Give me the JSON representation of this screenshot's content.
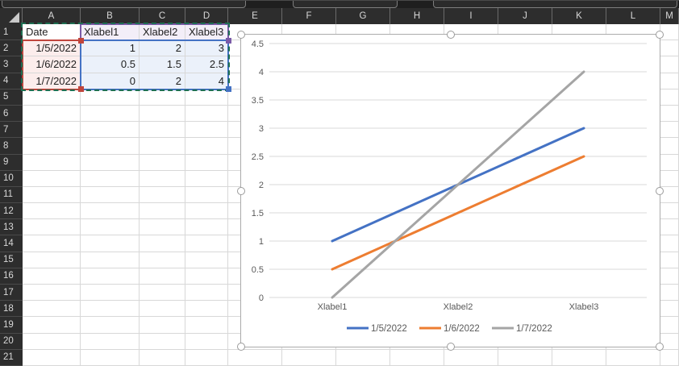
{
  "spreadsheet": {
    "column_headers": [
      "A",
      "B",
      "C",
      "D",
      "E",
      "F",
      "G",
      "H",
      "I",
      "J",
      "K",
      "L",
      "M"
    ],
    "row_headers": [
      "1",
      "2",
      "3",
      "4",
      "5",
      "6",
      "7",
      "8",
      "9",
      "10",
      "11",
      "12",
      "13",
      "14",
      "15",
      "16",
      "17",
      "18",
      "19",
      "20",
      "21"
    ],
    "cells": [
      [
        "Date",
        "Xlabel1",
        "Xlabel2",
        "Xlabel3"
      ],
      [
        "1/5/2022",
        "1",
        "2",
        "3"
      ],
      [
        "1/6/2022",
        "0.5",
        "1.5",
        "2.5"
      ],
      [
        "1/7/2022",
        "0",
        "2",
        "4"
      ]
    ],
    "selection": {
      "range_border_color": "#1D6F52",
      "category_labels": {
        "border": "#7B5BA8",
        "fill": "#F3EEF8"
      },
      "series_names": {
        "border": "#C0453C",
        "fill": "#FCEDEC"
      },
      "values": {
        "border": "#4472C4",
        "fill": "#EBF1FA"
      }
    }
  },
  "chart_data": {
    "type": "line",
    "categories": [
      "Xlabel1",
      "Xlabel2",
      "Xlabel3"
    ],
    "series": [
      {
        "name": "1/5/2022",
        "color": "#4472C4",
        "values": [
          1,
          2,
          3
        ]
      },
      {
        "name": "1/6/2022",
        "color": "#ED7D31",
        "values": [
          0.5,
          1.5,
          2.5
        ]
      },
      {
        "name": "1/7/2022",
        "color": "#A5A5A5",
        "values": [
          0,
          2,
          4
        ]
      }
    ],
    "ylim": [
      0,
      4.5
    ],
    "y_step": 0.5,
    "y_tick_labels": [
      "0",
      "0.5",
      "1",
      "1.5",
      "2",
      "2.5",
      "3",
      "3.5",
      "4",
      "4.5"
    ],
    "grid": true,
    "legend_position": "bottom",
    "axis_text_color": "#595959",
    "gridline_color": "#D9D9D9"
  }
}
